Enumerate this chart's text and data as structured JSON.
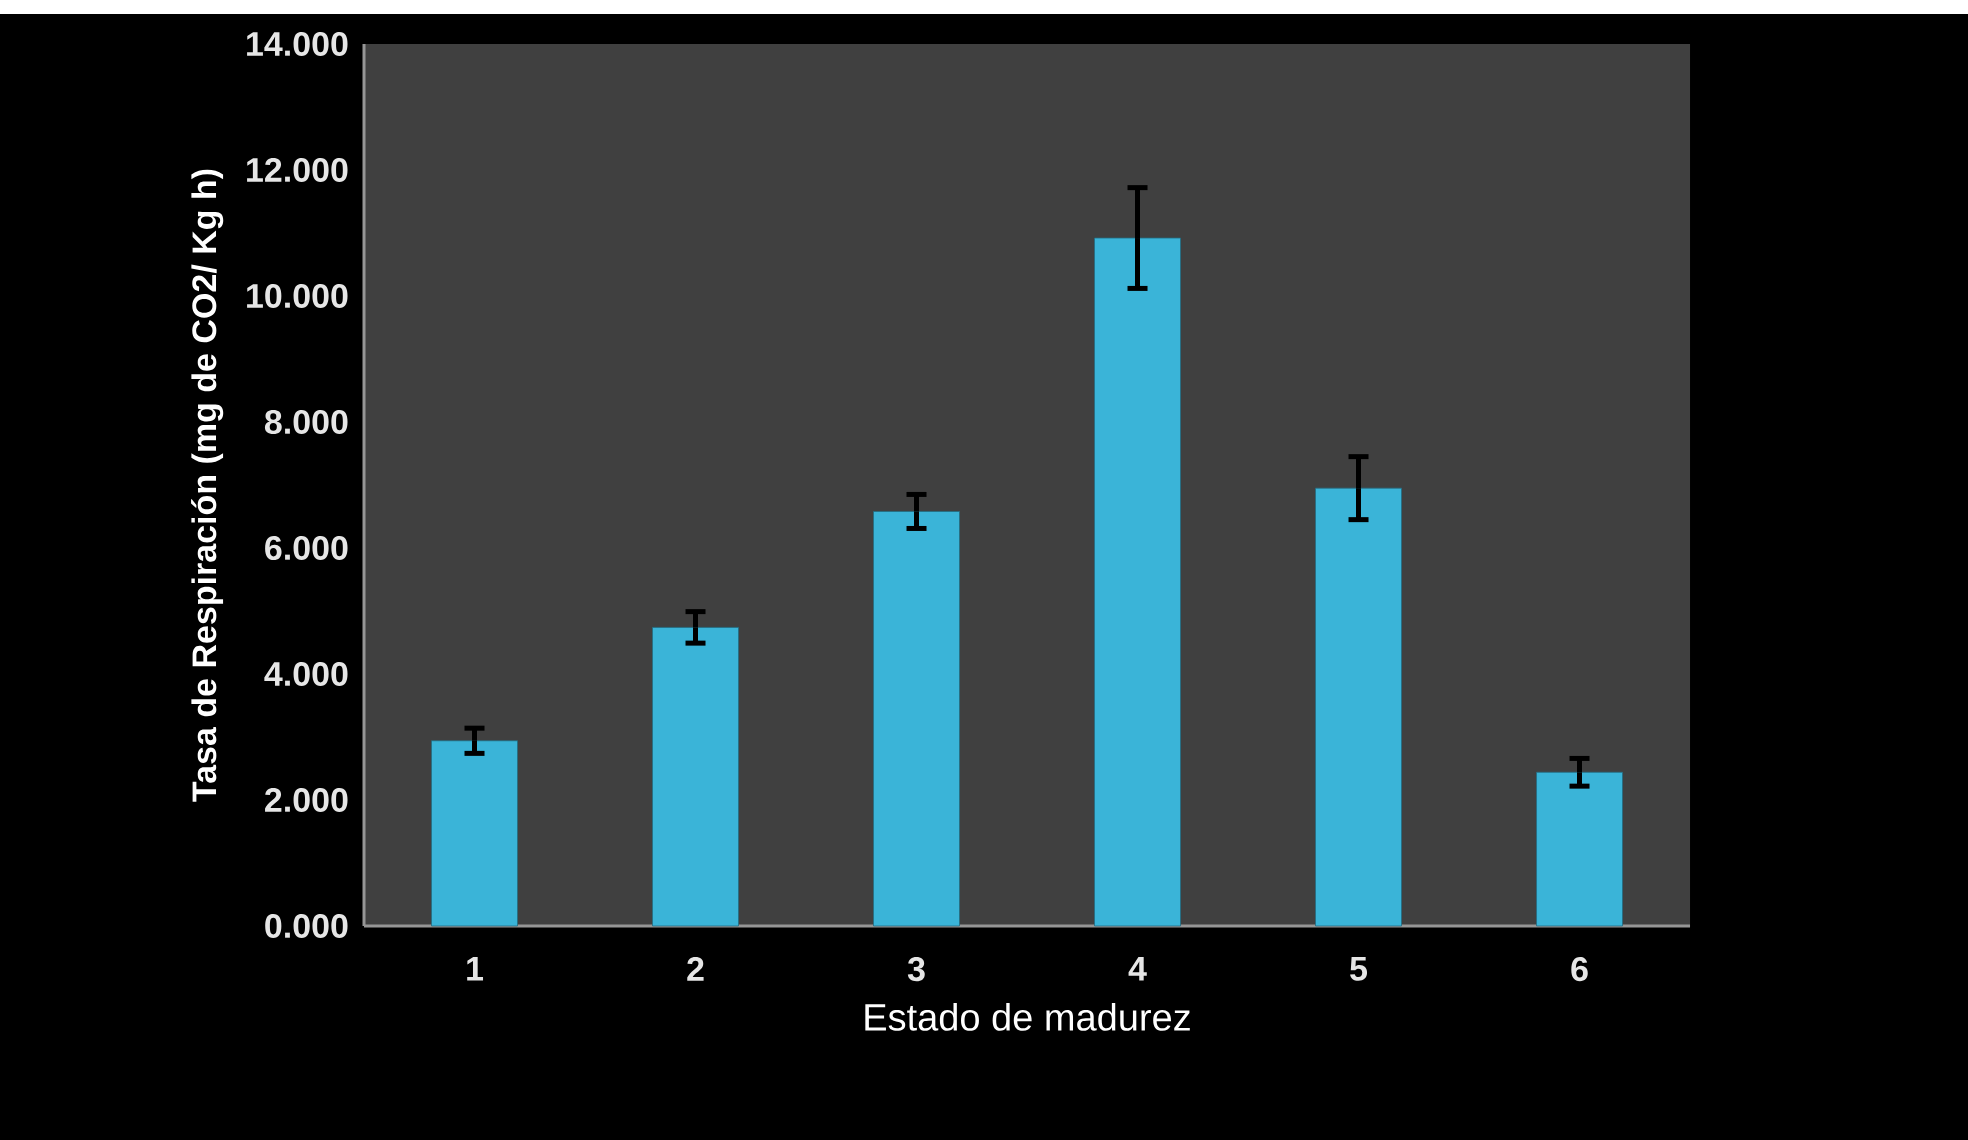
{
  "chart_data": {
    "type": "bar",
    "xlabel": "Estado de madurez",
    "ylabel": "Tasa de Respiración (mg de CO2/ Kg h)",
    "categories": [
      "1",
      "2",
      "3",
      "4",
      "5",
      "6"
    ],
    "values": [
      2.94,
      4.74,
      6.58,
      10.92,
      6.95,
      2.44
    ],
    "errors": [
      0.2,
      0.25,
      0.27,
      0.8,
      0.5,
      0.22
    ],
    "color": "#3ab4d8",
    "ylim": [
      0,
      14
    ],
    "yticks": [
      {
        "value": 0,
        "label": "0.000"
      },
      {
        "value": 2,
        "label": "2.000"
      },
      {
        "value": 4,
        "label": "4.000"
      },
      {
        "value": 6,
        "label": "6.000"
      },
      {
        "value": 8,
        "label": "8.000"
      },
      {
        "value": 10,
        "label": "10.000"
      },
      {
        "value": 12,
        "label": "12.000"
      },
      {
        "value": 14,
        "label": "14.000"
      }
    ],
    "grid": false
  }
}
